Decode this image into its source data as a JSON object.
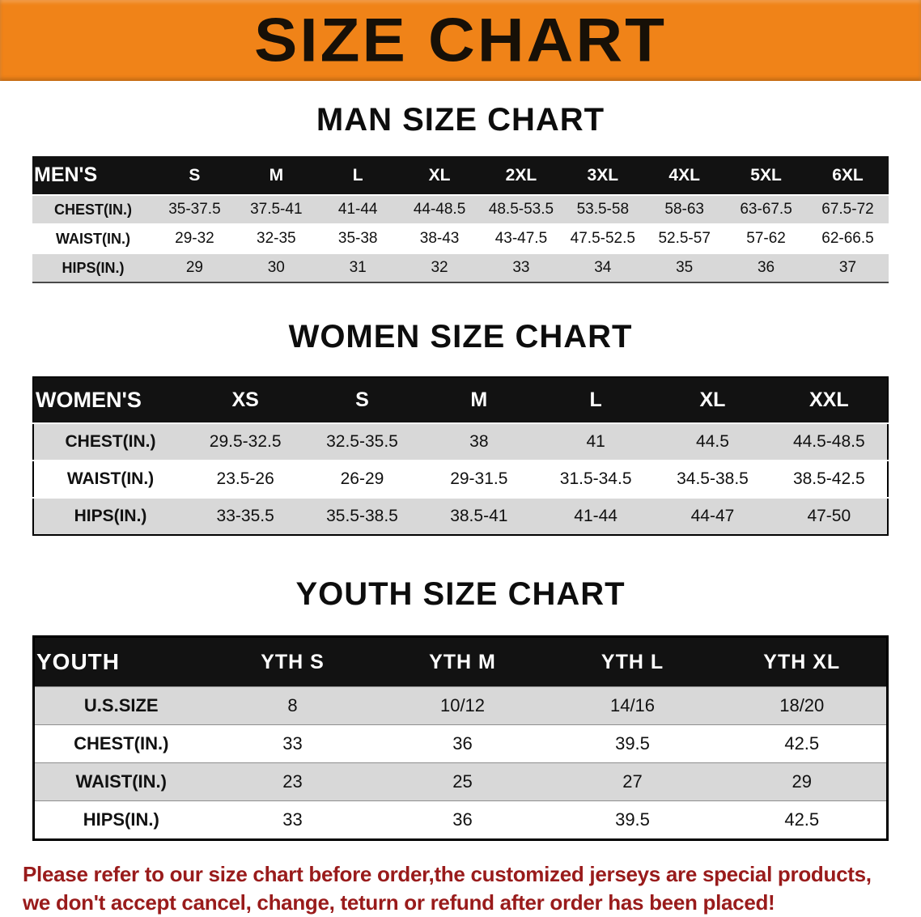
{
  "banner": {
    "title": "SIZE CHART"
  },
  "sections": [
    {
      "title": "MAN SIZE CHART",
      "table": {
        "header": [
          "MEN'S",
          "S",
          "M",
          "L",
          "XL",
          "2XL",
          "3XL",
          "4XL",
          "5XL",
          "6XL"
        ],
        "rows": [
          [
            "CHEST(IN.)",
            "35-37.5",
            "37.5-41",
            "41-44",
            "44-48.5",
            "48.5-53.5",
            "53.5-58",
            "58-63",
            "63-67.5",
            "67.5-72"
          ],
          [
            "WAIST(IN.)",
            "29-32",
            "32-35",
            "35-38",
            "38-43",
            "43-47.5",
            "47.5-52.5",
            "52.5-57",
            "57-62",
            "62-66.5"
          ],
          [
            "HIPS(IN.)",
            "29",
            "30",
            "31",
            "32",
            "33",
            "34",
            "35",
            "36",
            "37"
          ]
        ]
      }
    },
    {
      "title": "WOMEN SIZE CHART",
      "table": {
        "header": [
          "WOMEN'S",
          "XS",
          "S",
          "M",
          "L",
          "XL",
          "XXL"
        ],
        "rows": [
          [
            "CHEST(IN.)",
            "29.5-32.5",
            "32.5-35.5",
            "38",
            "41",
            "44.5",
            "44.5-48.5"
          ],
          [
            "WAIST(IN.)",
            "23.5-26",
            "26-29",
            "29-31.5",
            "31.5-34.5",
            "34.5-38.5",
            "38.5-42.5"
          ],
          [
            "HIPS(IN.)",
            "33-35.5",
            "35.5-38.5",
            "38.5-41",
            "41-44",
            "44-47",
            "47-50"
          ]
        ]
      }
    },
    {
      "title": "YOUTH SIZE CHART",
      "table": {
        "header": [
          "YOUTH",
          "YTH S",
          "YTH M",
          "YTH L",
          "YTH XL"
        ],
        "rows": [
          [
            "U.S.SIZE",
            "8",
            "10/12",
            "14/16",
            "18/20"
          ],
          [
            "CHEST(IN.)",
            "33",
            "36",
            "39.5",
            "42.5"
          ],
          [
            "WAIST(IN.)",
            "23",
            "25",
            "27",
            "29"
          ],
          [
            "HIPS(IN.)",
            "33",
            "36",
            "39.5",
            "42.5"
          ]
        ]
      }
    }
  ],
  "footer": {
    "line1": "Please refer to our size chart before order,the customized jerseys are special products,",
    "line2": "we don't accept cancel, change, teturn or refund after order has been placed!"
  },
  "colors": {
    "banner_bg": "#F08318",
    "header_bg": "#121212",
    "row_alt_bg": "#D8D8D8",
    "footer_text": "#991B1B"
  }
}
